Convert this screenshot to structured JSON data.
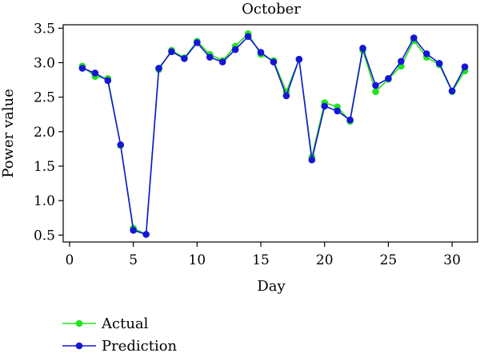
{
  "chart_data": {
    "type": "line",
    "title": "October",
    "xlabel": "Day",
    "ylabel": "Power value",
    "xlim": [
      -0.5,
      32
    ],
    "ylim": [
      0.4,
      3.55
    ],
    "xticks": [
      0,
      5,
      10,
      15,
      20,
      25,
      30
    ],
    "yticks": [
      0.5,
      1.0,
      1.5,
      2.0,
      2.5,
      3.0,
      3.5
    ],
    "xtick_labels": [
      "0",
      "5",
      "10",
      "15",
      "20",
      "25",
      "30"
    ],
    "ytick_labels": [
      "0.5",
      "1.0",
      "1.5",
      "2.0",
      "2.5",
      "3.0",
      "3.5"
    ],
    "grid": false,
    "legend_position": "bottom-left, below plot",
    "x": [
      1,
      2,
      3,
      4,
      5,
      6,
      7,
      8,
      9,
      10,
      11,
      12,
      13,
      14,
      15,
      16,
      17,
      18,
      19,
      20,
      21,
      22,
      23,
      24,
      25,
      26,
      27,
      28,
      29,
      30,
      31
    ],
    "series": [
      {
        "name": "Actual",
        "color": "#22e31e",
        "values": [
          2.95,
          2.8,
          2.77,
          1.8,
          0.6,
          0.51,
          2.9,
          3.18,
          3.07,
          3.31,
          3.12,
          3.03,
          3.24,
          3.42,
          3.12,
          3.03,
          2.58,
          3.05,
          1.63,
          2.42,
          2.36,
          2.15,
          3.18,
          2.58,
          2.76,
          2.95,
          3.32,
          3.08,
          2.97,
          2.58,
          2.88
        ]
      },
      {
        "name": "Prediction",
        "color": "#1616d6",
        "values": [
          2.92,
          2.85,
          2.74,
          1.81,
          0.57,
          0.51,
          2.92,
          3.16,
          3.06,
          3.29,
          3.08,
          3.01,
          3.19,
          3.38,
          3.15,
          3.01,
          2.52,
          3.05,
          1.59,
          2.37,
          2.3,
          2.17,
          3.21,
          2.67,
          2.77,
          3.02,
          3.36,
          3.13,
          2.99,
          2.59,
          2.94
        ]
      }
    ]
  }
}
